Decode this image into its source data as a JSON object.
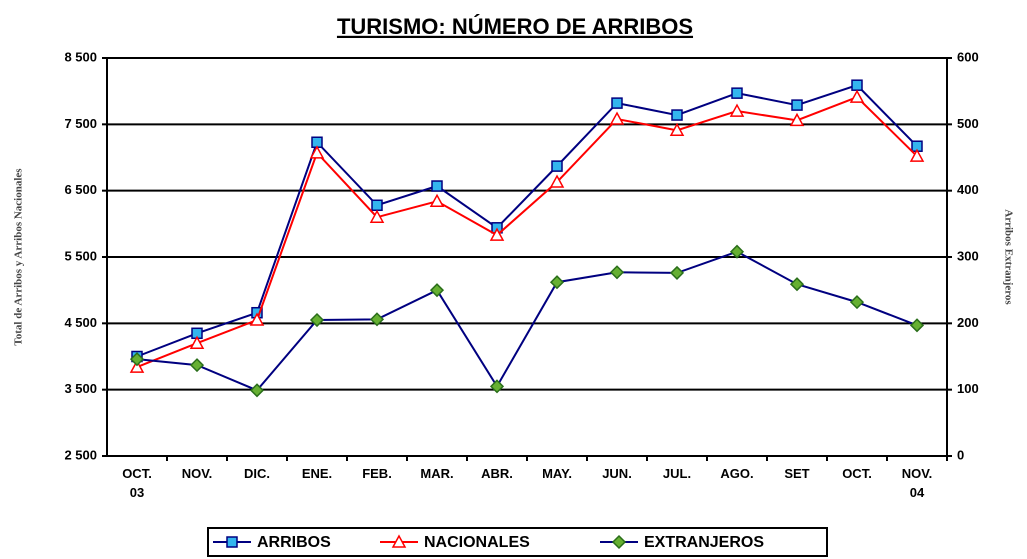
{
  "chart_data": {
    "type": "line",
    "title": "TURISMO: NÚMERO DE ARRIBOS",
    "y_label": "Total de Arribos y Arribos Nacionales",
    "y2_label": "Arribos Extranjeros",
    "categories": [
      "OCT.\n03",
      "NOV.",
      "DIC.",
      "ENE.",
      "FEB.",
      "MAR.",
      "ABR.",
      "MAY.",
      "JUN.",
      "JUL.",
      "AGO.",
      "SET",
      "OCT.",
      "NOV.\n04"
    ],
    "series": [
      {
        "name": "ARRIBOS",
        "color": "#000080",
        "marker": "square",
        "marker_color": "#33b5ee",
        "axis": "y",
        "values": [
          4000,
          4350,
          4660,
          7230,
          6280,
          6570,
          5940,
          6870,
          7820,
          7640,
          7970,
          7790,
          8090,
          7170
        ]
      },
      {
        "name": "NACIONALES",
        "color": "#ff0000",
        "marker": "triangle",
        "marker_color": "#ffffff",
        "axis": "y",
        "values": [
          3840,
          4200,
          4550,
          7070,
          6100,
          6340,
          5830,
          6630,
          7580,
          7410,
          7700,
          7560,
          7910,
          7020
        ]
      },
      {
        "name": "EXTRANJEROS",
        "color": "#000080",
        "marker": "diamond",
        "marker_color": "#66b032",
        "axis": "y2",
        "values": [
          146,
          137,
          99,
          205,
          206,
          250,
          105,
          262,
          277,
          276,
          308,
          259,
          232,
          197
        ]
      }
    ],
    "ylim": [
      2500,
      8500
    ],
    "yticks": [
      {
        "value": 2500,
        "label": "2 500"
      },
      {
        "value": 3500,
        "label": "3 500"
      },
      {
        "value": 4500,
        "label": "4 500"
      },
      {
        "value": 5500,
        "label": "5 500"
      },
      {
        "value": 6500,
        "label": "6 500"
      },
      {
        "value": 7500,
        "label": "7 500"
      },
      {
        "value": 8500,
        "label": "8 500"
      }
    ],
    "y2lim": [
      0,
      600
    ],
    "y2ticks": [
      0,
      100,
      200,
      300,
      400,
      500,
      600
    ],
    "grid": true
  }
}
